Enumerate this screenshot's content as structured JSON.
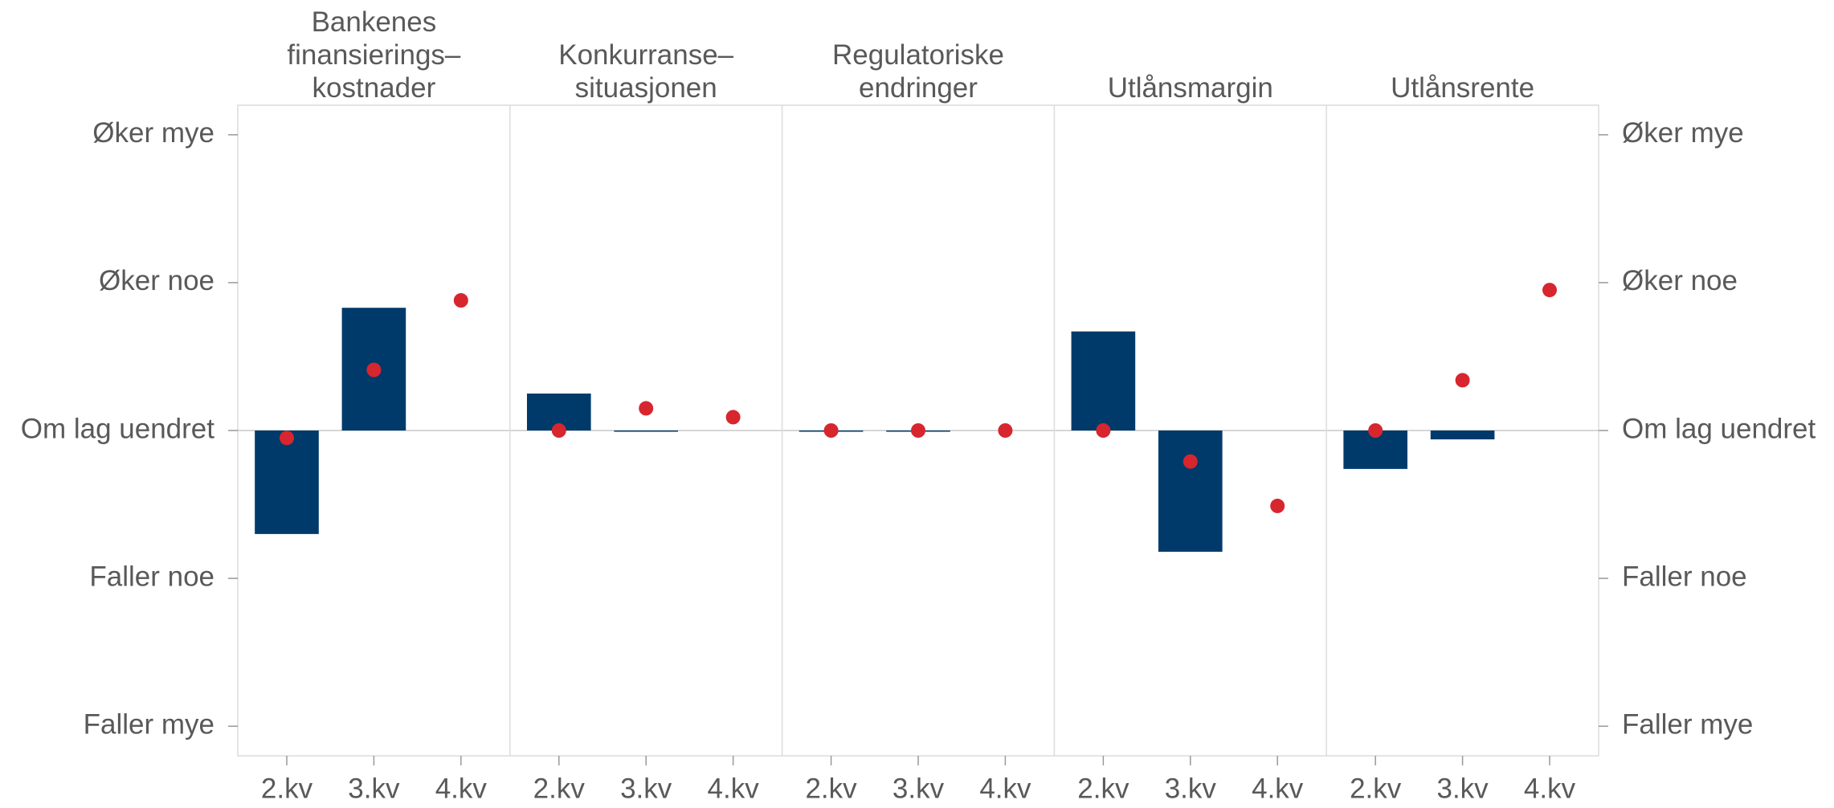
{
  "chart_data": {
    "type": "bar",
    "ylim": [
      -2.2,
      2.2
    ],
    "yticks": [
      {
        "value": -2,
        "label": "Faller mye"
      },
      {
        "value": -1,
        "label": "Faller noe"
      },
      {
        "value": 0,
        "label": "Om lag uendret"
      },
      {
        "value": 1,
        "label": "Øker noe"
      },
      {
        "value": 2,
        "label": "Øker mye"
      }
    ],
    "panels": [
      {
        "title": [
          "Bankenes",
          "finansierings–",
          "kostnader"
        ],
        "categories": [
          "2.kv",
          "3.kv",
          "4.kv"
        ],
        "series": [
          {
            "type": "bar",
            "color": "#003a6b",
            "values": [
              -0.7,
              0.83,
              null
            ]
          },
          {
            "type": "scatter",
            "color": "#d7262e",
            "values": [
              -0.05,
              0.41,
              0.88
            ]
          }
        ]
      },
      {
        "title": [
          "Konkurranse–",
          "situasjonen"
        ],
        "categories": [
          "2.kv",
          "3.kv",
          "4.kv"
        ],
        "series": [
          {
            "type": "bar",
            "color": "#003a6b",
            "values": [
              0.25,
              0,
              null
            ]
          },
          {
            "type": "scatter",
            "color": "#d7262e",
            "values": [
              0,
              0.15,
              0.09
            ]
          }
        ]
      },
      {
        "title": [
          "Regulatoriske",
          "endringer"
        ],
        "categories": [
          "2.kv",
          "3.kv",
          "4.kv"
        ],
        "series": [
          {
            "type": "bar",
            "color": "#003a6b",
            "values": [
              0,
              0,
              null
            ]
          },
          {
            "type": "scatter",
            "color": "#d7262e",
            "values": [
              0,
              0,
              0
            ]
          }
        ]
      },
      {
        "title": [
          "Utlånsmargin"
        ],
        "categories": [
          "2.kv",
          "3.kv",
          "4.kv"
        ],
        "series": [
          {
            "type": "bar",
            "color": "#003a6b",
            "values": [
              0.67,
              -0.82,
              null
            ]
          },
          {
            "type": "scatter",
            "color": "#d7262e",
            "values": [
              0,
              -0.21,
              -0.51
            ]
          }
        ]
      },
      {
        "title": [
          "Utlånsrente"
        ],
        "categories": [
          "2.kv",
          "3.kv",
          "4.kv"
        ],
        "series": [
          {
            "type": "bar",
            "color": "#003a6b",
            "values": [
              -0.26,
              -0.06,
              null
            ]
          },
          {
            "type": "scatter",
            "color": "#d7262e",
            "values": [
              0,
              0.34,
              0.95
            ]
          }
        ]
      }
    ]
  }
}
